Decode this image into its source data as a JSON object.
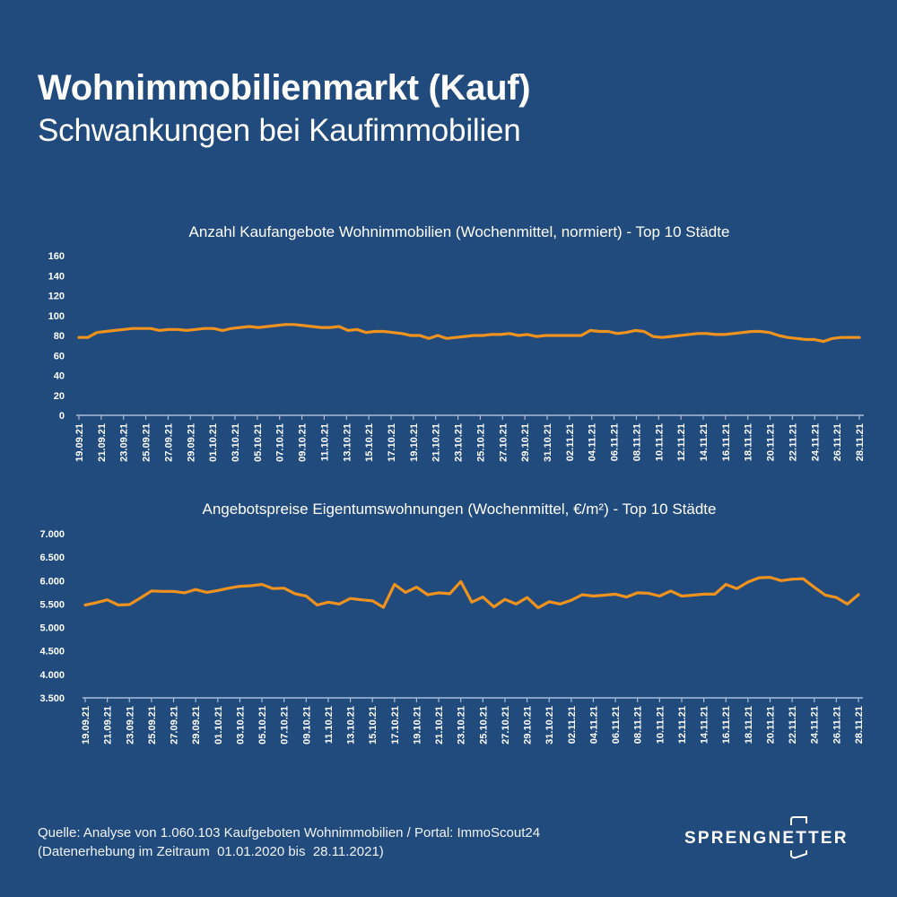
{
  "header": {
    "title": "Wohnimmobilienmarkt (Kauf)",
    "subtitle": "Schwankungen bei Kaufimmobilien"
  },
  "footer": {
    "source_line": "Quelle: Analyse von 1.060.103 Kaufgeboten Wohnimmobilien / Portal: ImmoScout24",
    "period_line": "(Datenerhebung im Zeitraum  01.01.2020 bis  28.11.2021)"
  },
  "logo": {
    "text": "SPRENGNETTER"
  },
  "colors": {
    "background": "#214a7d",
    "line": "#f0921e",
    "axis": "#a9bedb",
    "text": "#ffffff"
  },
  "chart_data": [
    {
      "type": "line",
      "title": "Anzahl Kaufangebote Wohnimmobilien (Wochenmittel, normiert) - Top 10 Städte",
      "xlabel": "",
      "ylabel": "",
      "ylim": [
        0,
        160
      ],
      "yticks": [
        0,
        20,
        40,
        60,
        80,
        100,
        120,
        140,
        160
      ],
      "ytick_labels": [
        "0",
        "20",
        "40",
        "60",
        "80",
        "100",
        "120",
        "140",
        "160"
      ],
      "xtick_labels": [
        "19.09.21",
        "21.09.21",
        "23.09.21",
        "25.09.21",
        "27.09.21",
        "29.09.21",
        "01.10.21",
        "03.10.21",
        "05.10.21",
        "07.10.21",
        "09.10.21",
        "11.10.21",
        "13.10.21",
        "15.10.21",
        "17.10.21",
        "19.10.21",
        "21.10.21",
        "23.10.21",
        "25.10.21",
        "27.10.21",
        "29.10.21",
        "31.10.21",
        "02.11.21",
        "04.11.21",
        "06.11.21",
        "08.11.21",
        "10.11.21",
        "12.11.21",
        "14.11.21",
        "16.11.21",
        "18.11.21",
        "20.11.21",
        "22.11.21",
        "24.11.21",
        "26.11.21",
        "28.11.21"
      ],
      "grid": false,
      "legend": "none",
      "series": [
        {
          "name": "Anzahl Kaufangebote",
          "values": [
            78,
            78,
            83,
            84,
            85,
            86,
            87,
            87,
            87,
            85,
            86,
            86,
            85,
            86,
            87,
            87,
            85,
            87,
            88,
            89,
            88,
            89,
            90,
            91,
            91,
            90,
            89,
            88,
            88,
            89,
            85,
            86,
            83,
            84,
            84,
            83,
            82,
            80,
            80,
            77,
            80,
            77,
            78,
            79,
            80,
            80,
            81,
            81,
            82,
            80,
            81,
            79,
            80,
            80,
            80,
            80,
            80,
            85,
            84,
            84,
            82,
            83,
            85,
            84,
            79,
            78,
            79,
            80,
            81,
            82,
            82,
            81,
            81,
            82,
            83,
            84,
            84,
            83,
            80,
            78,
            77,
            76,
            76,
            74,
            77,
            78,
            78,
            78
          ]
        }
      ]
    },
    {
      "type": "line",
      "title": "Angebotspreise Eigentumswohnungen (Wochenmittel, €/m²) - Top 10 Städte",
      "xlabel": "",
      "ylabel": "",
      "ylim": [
        3500,
        7000
      ],
      "yticks": [
        3500,
        4000,
        4500,
        5000,
        5500,
        6000,
        6500,
        7000
      ],
      "ytick_labels": [
        "3.500",
        "4.000",
        "4.500",
        "5.000",
        "5.500",
        "6.000",
        "6.500",
        "7.000"
      ],
      "xtick_labels": [
        "19.09.21",
        "21.09.21",
        "23.09.21",
        "25.09.21",
        "27.09.21",
        "29.09.21",
        "01.10.21",
        "03.10.21",
        "05.10.21",
        "07.10.21",
        "09.10.21",
        "11.10.21",
        "13.10.21",
        "15.10.21",
        "17.10.21",
        "19.10.21",
        "21.10.21",
        "23.10.21",
        "25.10.21",
        "27.10.21",
        "29.10.21",
        "31.10.21",
        "02.11.21",
        "04.11.21",
        "06.11.21",
        "08.11.21",
        "10.11.21",
        "12.11.21",
        "14.11.21",
        "16.11.21",
        "18.11.21",
        "20.11.21",
        "22.11.21",
        "24.11.21",
        "26.11.21",
        "28.11.21"
      ],
      "grid": false,
      "legend": "none",
      "series": [
        {
          "name": "Angebotspreise €/m²",
          "values": [
            5480,
            5530,
            5590,
            5480,
            5490,
            5630,
            5780,
            5770,
            5770,
            5740,
            5810,
            5750,
            5790,
            5840,
            5880,
            5890,
            5920,
            5830,
            5840,
            5720,
            5670,
            5480,
            5540,
            5500,
            5620,
            5590,
            5570,
            5430,
            5920,
            5750,
            5860,
            5700,
            5740,
            5720,
            5980,
            5540,
            5650,
            5440,
            5600,
            5500,
            5640,
            5420,
            5550,
            5500,
            5580,
            5700,
            5670,
            5690,
            5710,
            5650,
            5740,
            5730,
            5670,
            5780,
            5670,
            5690,
            5710,
            5710,
            5920,
            5830,
            5970,
            6060,
            6070,
            6000,
            6030,
            6040,
            5860,
            5690,
            5640,
            5500,
            5700
          ]
        }
      ]
    }
  ]
}
